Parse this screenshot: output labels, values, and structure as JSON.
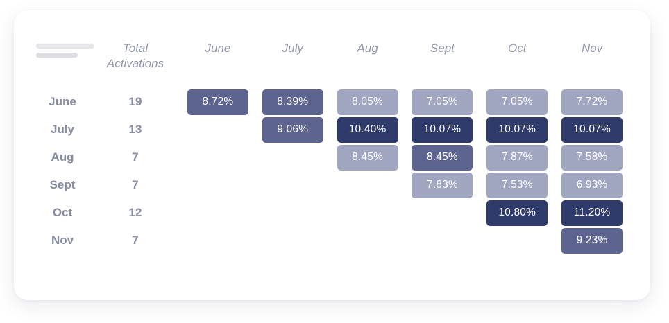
{
  "colors": {
    "cell_light": "#A0A5C0",
    "cell_medium": "#5C648F",
    "cell_dark": "#2E3A69",
    "cell_text": "#FFFFFF",
    "header_text": "#9196AB",
    "row_label_text": "#878CA2",
    "card_background": "#FFFFFF",
    "page_background": "#FFFFFF"
  },
  "chart_data": {
    "type": "heatmap",
    "total_header": [
      "Total",
      "Activations"
    ],
    "columns": [
      "June",
      "July",
      "Aug",
      "Sept",
      "Oct",
      "Nov"
    ],
    "tone_legend": {
      "light": "lowest percentages (~6.9%-8.45%)",
      "medium": "mid percentages (~8.39%-9.23%)",
      "dark": "highest percentages (~10%-11.2%)"
    },
    "rows": [
      {
        "label": "June",
        "total": "19",
        "cells": [
          {
            "month": "June",
            "value": "8.72%",
            "tone": "medium"
          },
          {
            "month": "July",
            "value": "8.39%",
            "tone": "medium"
          },
          {
            "month": "Aug",
            "value": "8.05%",
            "tone": "light"
          },
          {
            "month": "Sept",
            "value": "7.05%",
            "tone": "light"
          },
          {
            "month": "Oct",
            "value": "7.05%",
            "tone": "light"
          },
          {
            "month": "Nov",
            "value": "7.72%",
            "tone": "light"
          }
        ]
      },
      {
        "label": "July",
        "total": "13",
        "cells": [
          {
            "month": "July",
            "value": "9.06%",
            "tone": "medium"
          },
          {
            "month": "Aug",
            "value": "10.40%",
            "tone": "dark"
          },
          {
            "month": "Sept",
            "value": "10.07%",
            "tone": "dark"
          },
          {
            "month": "Oct",
            "value": "10.07%",
            "tone": "dark"
          },
          {
            "month": "Nov",
            "value": "10.07%",
            "tone": "dark"
          }
        ]
      },
      {
        "label": "Aug",
        "total": "7",
        "cells": [
          {
            "month": "Aug",
            "value": "8.45%",
            "tone": "light"
          },
          {
            "month": "Sept",
            "value": "8.45%",
            "tone": "medium"
          },
          {
            "month": "Oct",
            "value": "7.87%",
            "tone": "light"
          },
          {
            "month": "Nov",
            "value": "7.58%",
            "tone": "light"
          }
        ]
      },
      {
        "label": "Sept",
        "total": "7",
        "cells": [
          {
            "month": "Sept",
            "value": "7.83%",
            "tone": "light"
          },
          {
            "month": "Oct",
            "value": "7.53%",
            "tone": "light"
          },
          {
            "month": "Nov",
            "value": "6.93%",
            "tone": "light"
          }
        ]
      },
      {
        "label": "Oct",
        "total": "12",
        "cells": [
          {
            "month": "Oct",
            "value": "10.80%",
            "tone": "dark"
          },
          {
            "month": "Nov",
            "value": "11.20%",
            "tone": "dark"
          }
        ]
      },
      {
        "label": "Nov",
        "total": "7",
        "cells": [
          {
            "month": "Nov",
            "value": "9.23%",
            "tone": "medium"
          }
        ]
      }
    ]
  }
}
